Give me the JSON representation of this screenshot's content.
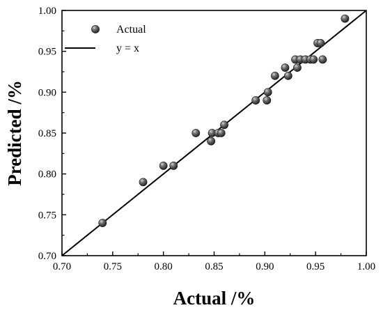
{
  "chart_data": {
    "type": "scatter",
    "title": "",
    "xlabel": "Actual /%",
    "ylabel": "Predicted /%",
    "xlim": [
      0.7,
      1.0
    ],
    "ylim": [
      0.7,
      1.0
    ],
    "x_ticks": [
      "0.70",
      "0.75",
      "0.80",
      "0.85",
      "0.90",
      "0.95",
      "1.00"
    ],
    "y_ticks": [
      "0.70",
      "0.75",
      "0.80",
      "0.85",
      "0.90",
      "0.95",
      "1.00"
    ],
    "grid": false,
    "legend_position": "top-left",
    "series": [
      {
        "name": "Actual",
        "kind": "points",
        "color": "#4a4a4a",
        "points": [
          [
            0.74,
            0.74
          ],
          [
            0.78,
            0.79
          ],
          [
            0.8,
            0.81
          ],
          [
            0.81,
            0.81
          ],
          [
            0.832,
            0.85
          ],
          [
            0.847,
            0.84
          ],
          [
            0.848,
            0.85
          ],
          [
            0.854,
            0.85
          ],
          [
            0.857,
            0.85
          ],
          [
            0.86,
            0.86
          ],
          [
            0.891,
            0.89
          ],
          [
            0.902,
            0.89
          ],
          [
            0.903,
            0.9
          ],
          [
            0.91,
            0.92
          ],
          [
            0.92,
            0.93
          ],
          [
            0.923,
            0.92
          ],
          [
            0.93,
            0.94
          ],
          [
            0.932,
            0.93
          ],
          [
            0.935,
            0.94
          ],
          [
            0.94,
            0.94
          ],
          [
            0.945,
            0.94
          ],
          [
            0.948,
            0.94
          ],
          [
            0.952,
            0.96
          ],
          [
            0.955,
            0.96
          ],
          [
            0.957,
            0.94
          ],
          [
            0.979,
            0.99
          ]
        ]
      },
      {
        "name": "y = x",
        "kind": "line",
        "color": "#000000",
        "points": [
          [
            0.7,
            0.7
          ],
          [
            1.0,
            1.0
          ]
        ]
      }
    ]
  }
}
